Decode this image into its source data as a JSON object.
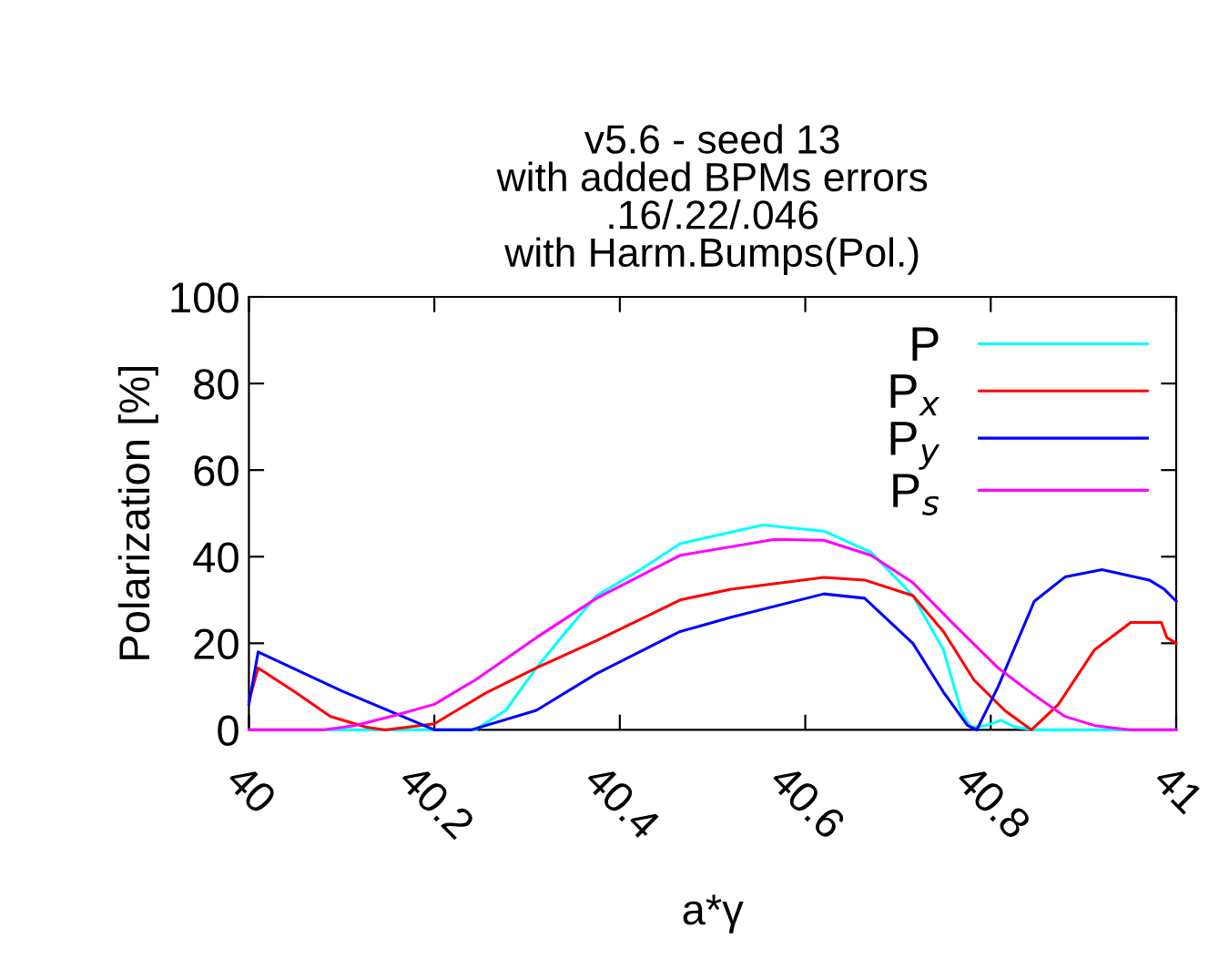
{
  "chart_data": {
    "type": "line",
    "title": "v5.6 - seed 13\nwith added BPMs errors\n.16/.22/.046\nwith Harm.Bumps(Pol.)",
    "xlabel": "a*γ",
    "ylabel": "Polarization [%]",
    "xlim": [
      40,
      41
    ],
    "ylim": [
      0,
      100
    ],
    "xticks": [
      40,
      40.2,
      40.4,
      40.6,
      40.8,
      41
    ],
    "yticks": [
      0,
      20,
      40,
      60,
      80,
      100
    ],
    "grid": false,
    "legend": "top right",
    "marker": "none",
    "line_style": "solid",
    "series": [
      {
        "name": "P",
        "color": "#00ffff",
        "x": [
          40,
          40.1,
          40.2,
          40.244,
          40.277,
          40.31,
          40.342,
          40.375,
          40.42,
          40.465,
          40.554,
          40.62,
          40.671,
          40.716,
          40.749,
          40.768,
          40.778,
          40.795,
          40.811,
          40.827,
          40.847,
          40.9,
          41
        ],
        "values": [
          0,
          0,
          0,
          0,
          4.5,
          14.3,
          22.7,
          31,
          36.7,
          43,
          47.3,
          45.9,
          41,
          31,
          18.5,
          4.5,
          0.6,
          1,
          2.2,
          0.6,
          0,
          0,
          0
        ]
      },
      {
        "name": "P$_{x}$",
        "color": "#ff0000",
        "x": [
          40,
          40.01,
          40.05,
          40.088,
          40.127,
          40.147,
          40.2,
          40.257,
          40.31,
          40.375,
          40.465,
          40.52,
          40.62,
          40.664,
          40.716,
          40.749,
          40.782,
          40.815,
          40.844,
          40.873,
          40.912,
          40.951,
          40.984,
          40.99,
          41
        ],
        "values": [
          6.6,
          14.3,
          8.7,
          3.1,
          0.6,
          0,
          1.4,
          8.7,
          14.3,
          20.6,
          30,
          32.5,
          35.2,
          34.6,
          31,
          22.7,
          11.5,
          4.5,
          0,
          5.9,
          18.5,
          24.8,
          24.8,
          21.3,
          20
        ]
      },
      {
        "name": "P$_{y}$",
        "color": "#0000ff",
        "x": [
          40,
          40.01,
          40.1,
          40.2,
          40.24,
          40.31,
          40.375,
          40.465,
          40.52,
          40.62,
          40.664,
          40.716,
          40.749,
          40.775,
          40.785,
          40.808,
          40.847,
          40.88,
          40.92,
          40.971,
          40.987,
          41
        ],
        "values": [
          5.9,
          18,
          9,
          0,
          0,
          4.5,
          13,
          22.7,
          26,
          31.4,
          30.4,
          20,
          8.7,
          1,
          0,
          10,
          29.7,
          35.3,
          37,
          34.6,
          32.5,
          29.7
        ]
      },
      {
        "name": "P$_{s}$",
        "color": "#ff00ff",
        "x": [
          40,
          40.08,
          40.114,
          40.153,
          40.2,
          40.244,
          40.31,
          40.375,
          40.465,
          40.567,
          40.62,
          40.671,
          40.716,
          40.762,
          40.808,
          40.847,
          40.88,
          40.912,
          40.951,
          41
        ],
        "values": [
          0,
          0,
          1,
          3.1,
          5.9,
          11.5,
          21.3,
          30.4,
          40.3,
          44,
          43.8,
          40.3,
          34,
          24,
          14.3,
          8,
          3.1,
          1,
          0,
          0
        ]
      }
    ]
  }
}
